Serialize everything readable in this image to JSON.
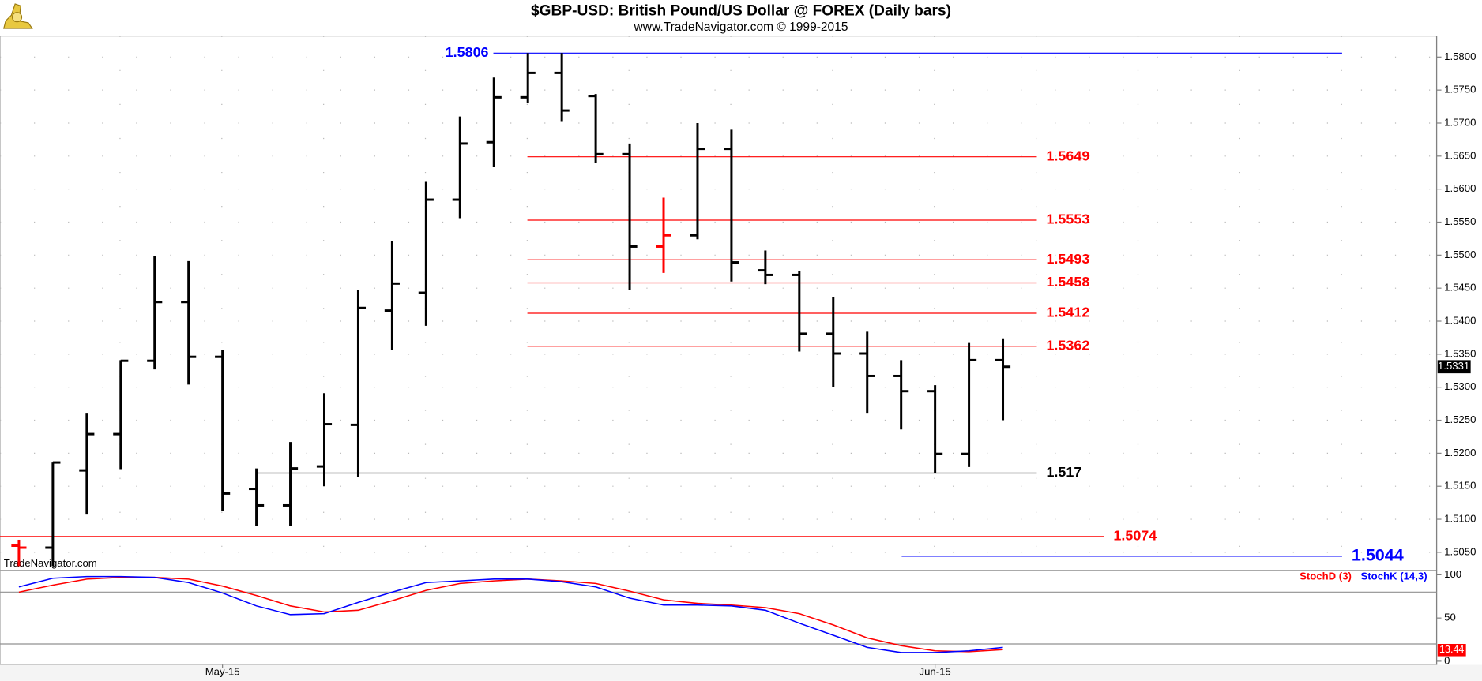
{
  "chart_data": [
    {
      "type": "ohlc",
      "title": "$GBP-USD:  British Pound/US Dollar @ FOREX  (Daily bars)",
      "subtitle": "www.TradeNavigator.com © 1999-2015",
      "watermark": "TradeNavigator.com",
      "categories": [
        null,
        null,
        null,
        null,
        null,
        null,
        "May-15",
        null,
        null,
        null,
        null,
        null,
        null,
        null,
        null,
        null,
        null,
        null,
        null,
        null,
        null,
        null,
        null,
        null,
        null,
        null,
        null,
        "Jun-15",
        null,
        null
      ],
      "open": [
        1.506,
        1.5057,
        1.5174,
        1.5229,
        1.534,
        1.5429,
        1.5346,
        1.5146,
        1.5121,
        1.518,
        1.5243,
        1.5416,
        1.5443,
        1.5584,
        1.5671,
        1.5739,
        1.5776,
        1.5741,
        1.5653,
        1.5513,
        1.553,
        1.5661,
        1.5477,
        1.547,
        1.5381,
        1.5351,
        1.5317,
        1.5294,
        1.5199,
        1.5341
      ],
      "high": [
        1.5069,
        1.5186,
        1.526,
        1.5341,
        1.5499,
        1.5491,
        1.5356,
        1.5177,
        1.5217,
        1.5291,
        1.5447,
        1.5521,
        1.5611,
        1.571,
        1.5769,
        1.5806,
        1.5806,
        1.5744,
        1.5669,
        1.5587,
        1.57,
        1.569,
        1.5507,
        1.5476,
        1.5436,
        1.5384,
        1.5341,
        1.5303,
        1.5367,
        1.5374
      ],
      "low": [
        1.5029,
        1.5029,
        1.5107,
        1.5176,
        1.5327,
        1.5304,
        1.5113,
        1.509,
        1.509,
        1.515,
        1.5164,
        1.5356,
        1.5393,
        1.5556,
        1.5633,
        1.573,
        1.5703,
        1.5639,
        1.5447,
        1.5473,
        1.5524,
        1.546,
        1.5456,
        1.5354,
        1.53,
        1.526,
        1.5236,
        1.517,
        1.5179,
        1.525
      ],
      "close": [
        1.5057,
        1.5186,
        1.5229,
        1.534,
        1.5429,
        1.5346,
        1.5139,
        1.5121,
        1.5177,
        1.5244,
        1.542,
        1.5457,
        1.5584,
        1.5669,
        1.5739,
        1.5776,
        1.5719,
        1.5653,
        1.5513,
        1.553,
        1.5661,
        1.5489,
        1.547,
        1.5381,
        1.5351,
        1.5317,
        1.5294,
        1.5199,
        1.5341,
        1.5331
      ],
      "colors": [
        "#ff0000",
        "#000000",
        "#000000",
        "#000000",
        "#000000",
        "#000000",
        "#000000",
        "#000000",
        "#000000",
        "#000000",
        "#000000",
        "#000000",
        "#000000",
        "#000000",
        "#000000",
        "#000000",
        "#000000",
        "#000000",
        "#000000",
        "#ff0000",
        "#000000",
        "#000000",
        "#000000",
        "#000000",
        "#000000",
        "#000000",
        "#000000",
        "#000000",
        "#000000",
        "#000000"
      ],
      "ylim": [
        1.5024,
        1.5829
      ],
      "yticks": [
        {
          "value": 1.505,
          "label": "1.5050"
        },
        {
          "value": 1.51,
          "label": "1.5100"
        },
        {
          "value": 1.515,
          "label": "1.5150"
        },
        {
          "value": 1.52,
          "label": "1.5200"
        },
        {
          "value": 1.525,
          "label": "1.5250"
        },
        {
          "value": 1.53,
          "label": "1.5300"
        },
        {
          "value": 1.535,
          "label": "1.5350"
        },
        {
          "value": 1.54,
          "label": "1.5400"
        },
        {
          "value": 1.545,
          "label": "1.5450"
        },
        {
          "value": 1.55,
          "label": "1.5500"
        },
        {
          "value": 1.555,
          "label": "1.5550"
        },
        {
          "value": 1.56,
          "label": "1.5600"
        },
        {
          "value": 1.565,
          "label": "1.5650"
        },
        {
          "value": 1.57,
          "label": "1.5700"
        },
        {
          "value": 1.575,
          "label": "1.5750"
        },
        {
          "value": 1.58,
          "label": "1.5800"
        }
      ],
      "levels": [
        {
          "value": 1.5806,
          "color": "#0000ff"
        },
        {
          "value": 1.5649,
          "color": "#ff0000"
        },
        {
          "value": 1.5553,
          "color": "#ff0000"
        },
        {
          "value": 1.5493,
          "color": "#ff0000"
        },
        {
          "value": 1.5458,
          "color": "#ff0000"
        },
        {
          "value": 1.5412,
          "color": "#ff0000"
        },
        {
          "value": 1.5362,
          "color": "#ff0000"
        },
        {
          "value": 1.517,
          "color": "#000000"
        },
        {
          "value": 1.5074,
          "color": "#ff0000"
        },
        {
          "value": 1.5044,
          "color": "#0000ff"
        }
      ],
      "grid": true
    },
    {
      "type": "line",
      "series": [
        {
          "name": "StochD (3)",
          "color": "#ff0000",
          "values": [
            80,
            88,
            95,
            97,
            97,
            95,
            87,
            76,
            64,
            57,
            59,
            70,
            82,
            90,
            93,
            95,
            93,
            90,
            81,
            71,
            67,
            65,
            62,
            55,
            42,
            27,
            18,
            12,
            11,
            13.44
          ]
        },
        {
          "name": "StochK (14,3)",
          "color": "#0000ff",
          "values": [
            86,
            96,
            98,
            98,
            97,
            91,
            79,
            64,
            54,
            55,
            68,
            80,
            91,
            93,
            95,
            95,
            92,
            86,
            73,
            65,
            65,
            64,
            59,
            44,
            30,
            16,
            10,
            10,
            12,
            16
          ]
        }
      ],
      "ylim": [
        -2,
        104
      ],
      "yticks": [
        0,
        50,
        100
      ],
      "levels": [
        80,
        20
      ],
      "grid": true
    }
  ]
}
